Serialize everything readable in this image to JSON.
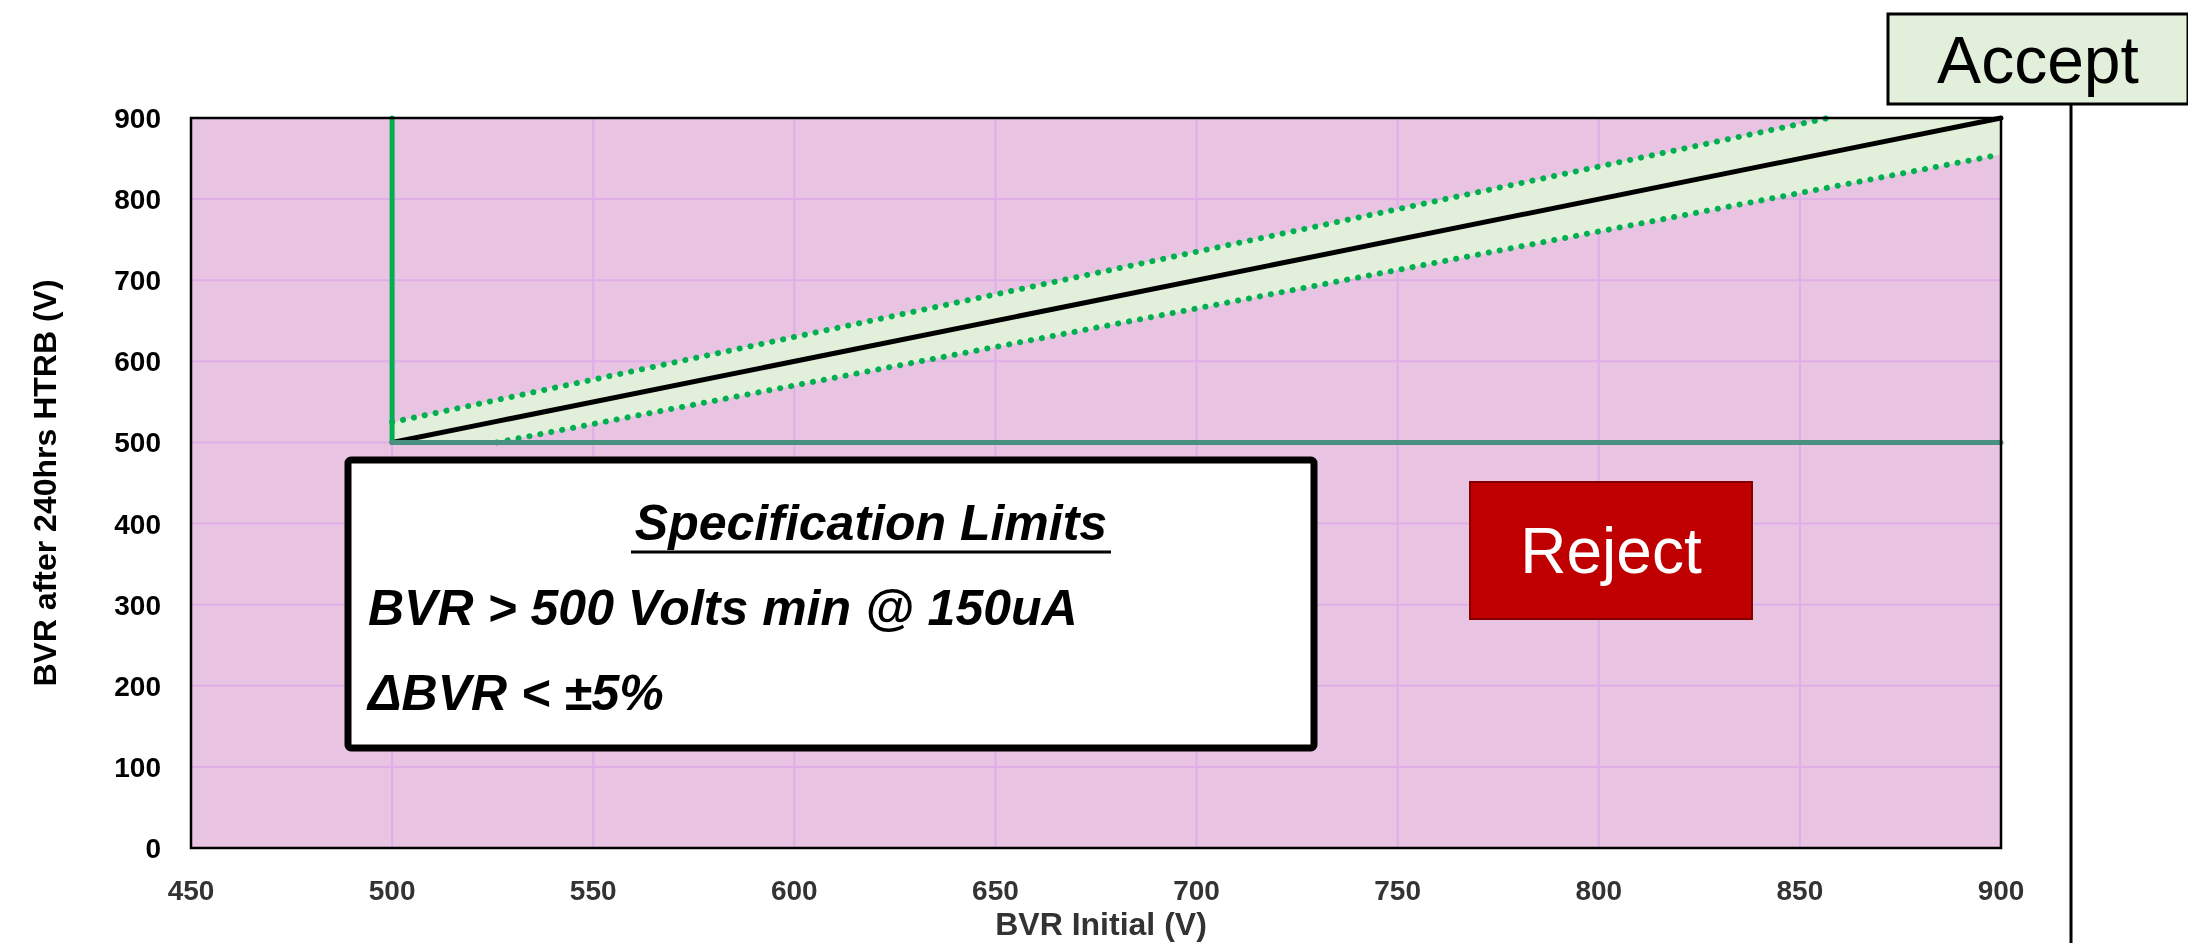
{
  "chart_data": {
    "type": "line",
    "xlabel": "BVR Initial (V)",
    "ylabel": "BVR after 240hrs HTRB (V)",
    "xlim": [
      450,
      900
    ],
    "xticks": [
      450,
      500,
      550,
      600,
      650,
      700,
      750,
      800,
      850,
      900
    ],
    "ylim": [
      0,
      900
    ],
    "yticks": [
      0,
      100,
      200,
      300,
      400,
      500,
      600,
      700,
      800,
      900
    ],
    "grid": true,
    "marker": "none",
    "series": [
      {
        "color": "#000000",
        "x": [
          500,
          526,
          857,
          900
        ],
        "values": [
          500,
          526,
          857,
          900
        ],
        "lower": [
          500,
          500,
          814,
          855
        ],
        "upper": [
          525,
          553,
          900,
          900
        ],
        "line_style": "solid"
      },
      {
        "color": "#00b050",
        "x": [
          500,
          857
        ],
        "values": [
          525,
          900
        ],
        "line_style": "dotted"
      },
      {
        "color": "#00b050",
        "x": [
          526,
          900
        ],
        "values": [
          500,
          855
        ],
        "line_style": "dotted"
      },
      {
        "color": "#00b050",
        "x": [
          500,
          500
        ],
        "values": [
          900,
          500
        ],
        "line_style": "solid"
      },
      {
        "color": "#4a9080",
        "x": [
          500,
          900
        ],
        "values": [
          500,
          500
        ],
        "line_style": "solid"
      }
    ],
    "annotations": [
      "Specification Limits",
      "BVR > 500 Volts min @ 150uA",
      "ΔBVR < ±5%",
      "Reject",
      "Accept"
    ]
  }
}
